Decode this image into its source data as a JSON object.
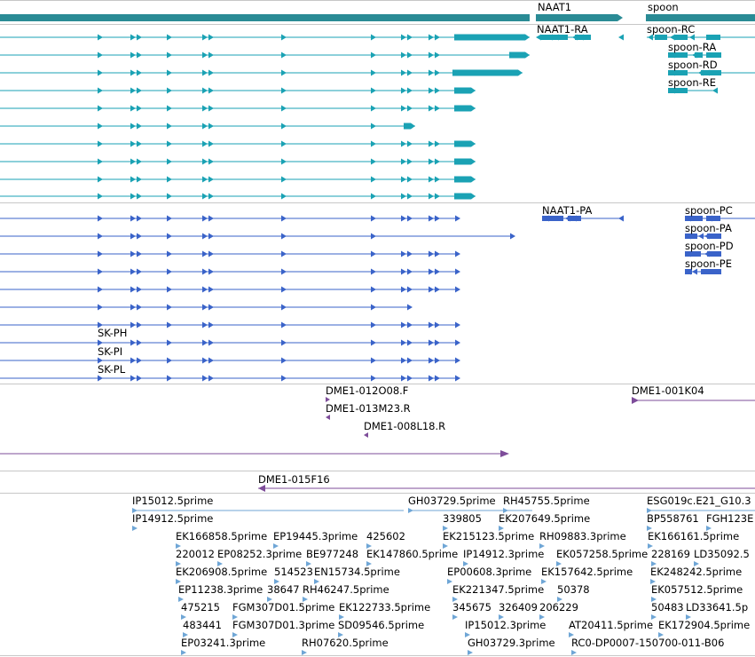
{
  "view": {
    "name": "genome-browser-tracks"
  },
  "colors": {
    "gene": "#2a8b95",
    "transcript_top": "#1aa2b4",
    "transcript_mid": "#3a63c9",
    "clone": "#7e4d9a",
    "est": "#6fa6d6",
    "separator": "#c7c7c7"
  },
  "gene_labels": [
    "NAAT1",
    "spoon"
  ],
  "transcripts_top": {
    "labels": [
      "NAAT1-RA",
      "spoon-RC",
      "spoon-RA",
      "spoon-RD",
      "spoon-RE"
    ]
  },
  "transcripts_mid": {
    "labels": [
      "NAAT1-PA",
      "spoon-PC",
      "spoon-PA",
      "spoon-PD",
      "spoon-PE",
      "SK-PH",
      "SK-PI",
      "SK-PL"
    ]
  },
  "clones": {
    "labels": [
      "DME1-012O08.F",
      "DME1-013M23.R",
      "DME1-008L18.R",
      "DME1-001K04",
      "DME1-015F16"
    ]
  },
  "ests": {
    "labels": [
      "IP15012.5prime",
      "IP14912.5prime",
      "EK166858.5prime",
      "EP19445.3prime",
      "425602",
      "220012",
      "EP08252.3prime",
      "BE977248",
      "EK147860.5prime",
      "EK206908.5prime",
      "514523",
      "EN15734.5prime",
      "EP11238.3prime",
      "38647",
      "RH46247.5prime",
      "475215",
      "FGM307D01.5prime",
      "EK122733.5prime",
      "483441",
      "FGM307D01.3prime",
      "SD09546.5prime",
      "EP03241.3prime",
      "RH07620.5prime",
      "GH03729.5prime",
      "RH45755.5prime",
      "339805",
      "EK207649.5prime",
      "EK215123.5prime",
      "RH09883.3prime",
      "IP14912.3prime",
      "EK057258.5prime",
      "EP00608.3prime",
      "EK157642.5prime",
      "EK221347.5prime",
      "50378",
      "345675",
      "326409",
      "206229",
      "IP15012.3prime",
      "AT20411.5prime",
      "GH03729.3prime",
      "RC0-DP0007-150700-011-B06",
      "ESG019c.E21_G10.3",
      "BP558761",
      "FGH123E",
      "EK166161.5prime",
      "228169",
      "LD35092.5",
      "EK248242.5prime",
      "EK057512.5prime",
      "50483",
      "LD33641.5p",
      "EK172904.5prime"
    ]
  }
}
